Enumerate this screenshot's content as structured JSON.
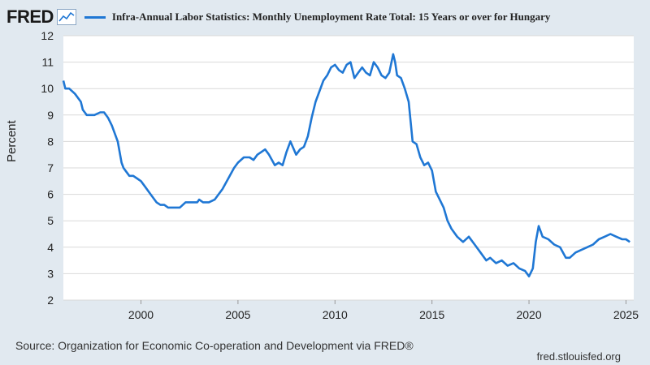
{
  "header": {
    "logo_text": "FRED",
    "logo_icon": "chart-line-icon",
    "series_legend": "Infra-Annual Labor Statistics: Monthly Unemployment Rate Total: 15 Years or over for Hungary"
  },
  "footer": {
    "source": "Source: Organization for Economic Co-operation and Development via FRED®",
    "site": "fred.stlouisfed.org"
  },
  "colors": {
    "line": "#1f77d4",
    "background": "#e1e9f0",
    "plot_background": "#ffffff",
    "grid": "#d9d9d9"
  },
  "chart_data": {
    "type": "line",
    "title": "Infra-Annual Labor Statistics: Monthly Unemployment Rate Total: 15 Years or over for Hungary",
    "xlabel": "",
    "ylabel": "Percent",
    "xlim": [
      1996,
      2025.4
    ],
    "ylim": [
      2,
      12
    ],
    "yticks": [
      "2",
      "3",
      "4",
      "5",
      "6",
      "7",
      "8",
      "9",
      "10",
      "11",
      "12"
    ],
    "xticks": [
      "2000",
      "2005",
      "2010",
      "2015",
      "2020",
      "2025"
    ],
    "grid": "horizontal",
    "series": [
      {
        "name": "Infra-Annual Labor Statistics: Monthly Unemployment Rate Total: 15 Years or over for Hungary",
        "x": [
          1996.0,
          1996.1,
          1996.3,
          1996.6,
          1996.9,
          1997.0,
          1997.1,
          1997.2,
          1997.4,
          1997.6,
          1997.9,
          1998.1,
          1998.3,
          1998.5,
          1998.8,
          1999.0,
          1999.1,
          1999.2,
          1999.4,
          1999.6,
          1999.8,
          2000.0,
          2000.2,
          2000.5,
          2000.8,
          2001.0,
          2001.2,
          2001.4,
          2001.6,
          2001.8,
          2002.0,
          2002.3,
          2002.6,
          2002.9,
          2003.0,
          2003.2,
          2003.5,
          2003.8,
          2004.0,
          2004.2,
          2004.5,
          2004.8,
          2005.0,
          2005.3,
          2005.6,
          2005.8,
          2006.0,
          2006.2,
          2006.4,
          2006.6,
          2006.9,
          2007.1,
          2007.3,
          2007.5,
          2007.7,
          2008.0,
          2008.2,
          2008.4,
          2008.6,
          2008.8,
          2009.0,
          2009.2,
          2009.4,
          2009.6,
          2009.8,
          2010.0,
          2010.2,
          2010.4,
          2010.6,
          2010.8,
          2011.0,
          2011.2,
          2011.4,
          2011.6,
          2011.8,
          2012.0,
          2012.2,
          2012.4,
          2012.6,
          2012.8,
          2013.0,
          2013.1,
          2013.2,
          2013.4,
          2013.6,
          2013.8,
          2014.0,
          2014.2,
          2014.4,
          2014.6,
          2014.8,
          2015.0,
          2015.2,
          2015.4,
          2015.6,
          2015.8,
          2016.0,
          2016.3,
          2016.6,
          2016.9,
          2017.2,
          2017.5,
          2017.8,
          2018.0,
          2018.3,
          2018.6,
          2018.9,
          2019.2,
          2019.5,
          2019.8,
          2020.0,
          2020.2,
          2020.35,
          2020.5,
          2020.7,
          2021.0,
          2021.3,
          2021.6,
          2021.9,
          2022.1,
          2022.4,
          2022.7,
          2023.0,
          2023.3,
          2023.6,
          2023.9,
          2024.2,
          2024.5,
          2024.8,
          2025.0,
          2025.2
        ],
        "values": [
          10.3,
          10.0,
          10.0,
          9.8,
          9.5,
          9.2,
          9.1,
          9.0,
          9.0,
          9.0,
          9.1,
          9.1,
          8.9,
          8.6,
          8.0,
          7.2,
          7.0,
          6.9,
          6.7,
          6.7,
          6.6,
          6.5,
          6.3,
          6.0,
          5.7,
          5.6,
          5.6,
          5.5,
          5.5,
          5.5,
          5.5,
          5.7,
          5.7,
          5.7,
          5.8,
          5.7,
          5.7,
          5.8,
          6.0,
          6.2,
          6.6,
          7.0,
          7.2,
          7.4,
          7.4,
          7.3,
          7.5,
          7.6,
          7.7,
          7.5,
          7.1,
          7.2,
          7.1,
          7.6,
          8.0,
          7.5,
          7.7,
          7.8,
          8.2,
          8.9,
          9.5,
          9.9,
          10.3,
          10.5,
          10.8,
          10.9,
          10.7,
          10.6,
          10.9,
          11.0,
          10.4,
          10.6,
          10.8,
          10.6,
          10.5,
          11.0,
          10.8,
          10.5,
          10.4,
          10.6,
          11.3,
          11.0,
          10.5,
          10.4,
          10.0,
          9.5,
          8.0,
          7.9,
          7.4,
          7.1,
          7.2,
          6.9,
          6.1,
          5.8,
          5.5,
          5.0,
          4.7,
          4.4,
          4.2,
          4.4,
          4.1,
          3.8,
          3.5,
          3.6,
          3.4,
          3.5,
          3.3,
          3.4,
          3.2,
          3.1,
          2.9,
          3.2,
          4.2,
          4.8,
          4.4,
          4.3,
          4.1,
          4.0,
          3.6,
          3.6,
          3.8,
          3.9,
          4.0,
          4.1,
          4.3,
          4.4,
          4.5,
          4.4,
          4.3,
          4.3,
          4.2
        ]
      }
    ]
  }
}
